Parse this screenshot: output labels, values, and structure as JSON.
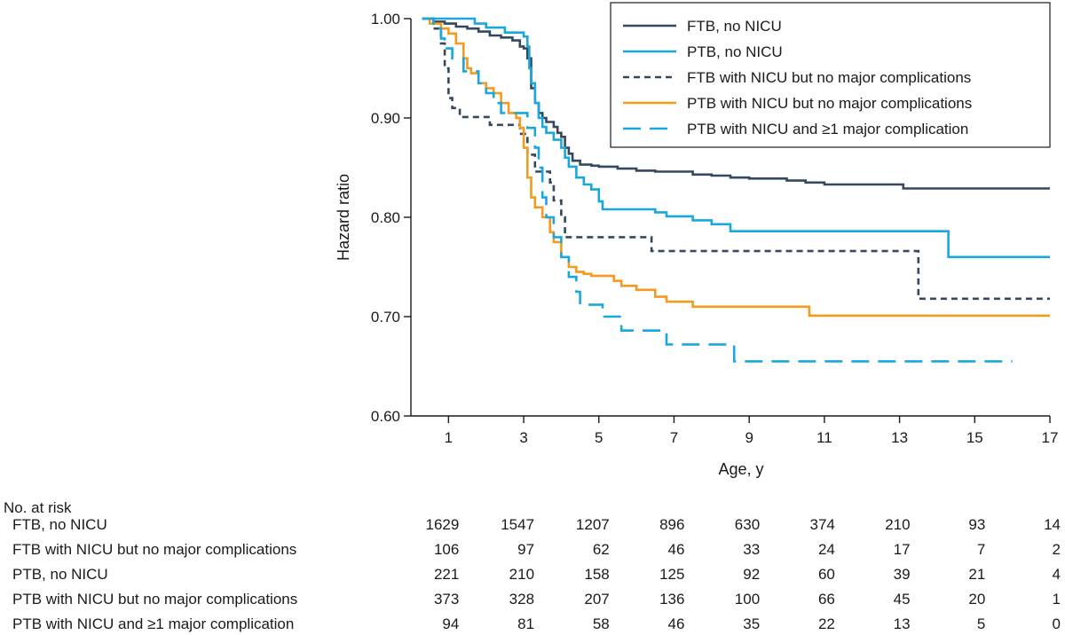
{
  "chart_data": {
    "type": "line",
    "step": true,
    "title": "",
    "xlabel": "Age, y",
    "ylabel": "Hazard ratio",
    "xlim": [
      0,
      17
    ],
    "ylim": [
      0.6,
      1.0
    ],
    "x_ticks": [
      1,
      3,
      5,
      7,
      9,
      11,
      13,
      15,
      17
    ],
    "y_ticks": [
      0.6,
      0.7,
      0.8,
      0.9,
      1.0
    ],
    "y_tick_labels": [
      "0.60",
      "0.70",
      "0.80",
      "0.90",
      "1.00"
    ],
    "grid": false,
    "legend_position": "top-right",
    "series": [
      {
        "name": "FTB, no NICU",
        "color": "#34495e",
        "dash": "solid",
        "points": [
          [
            0.3,
            1.0
          ],
          [
            0.6,
            0.997
          ],
          [
            0.9,
            0.995
          ],
          [
            1.2,
            0.992
          ],
          [
            1.5,
            0.99
          ],
          [
            1.8,
            0.987
          ],
          [
            2.1,
            0.983
          ],
          [
            2.4,
            0.981
          ],
          [
            2.7,
            0.978
          ],
          [
            2.9,
            0.972
          ],
          [
            3.0,
            0.97
          ],
          [
            3.1,
            0.96
          ],
          [
            3.2,
            0.93
          ],
          [
            3.3,
            0.915
          ],
          [
            3.4,
            0.905
          ],
          [
            3.5,
            0.9
          ],
          [
            3.6,
            0.896
          ],
          [
            3.8,
            0.891
          ],
          [
            3.9,
            0.885
          ],
          [
            4.0,
            0.881
          ],
          [
            4.1,
            0.87
          ],
          [
            4.2,
            0.864
          ],
          [
            4.3,
            0.857
          ],
          [
            4.5,
            0.853
          ],
          [
            4.8,
            0.852
          ],
          [
            5.0,
            0.851
          ],
          [
            5.5,
            0.849
          ],
          [
            6.0,
            0.847
          ],
          [
            6.5,
            0.846
          ],
          [
            7.0,
            0.846
          ],
          [
            7.5,
            0.843
          ],
          [
            8.0,
            0.842
          ],
          [
            8.5,
            0.84
          ],
          [
            9.0,
            0.839
          ],
          [
            10.0,
            0.837
          ],
          [
            10.5,
            0.835
          ],
          [
            11.0,
            0.833
          ],
          [
            12.0,
            0.833
          ],
          [
            13.0,
            0.833
          ],
          [
            13.1,
            0.829
          ],
          [
            14.0,
            0.829
          ],
          [
            15.0,
            0.829
          ],
          [
            16.0,
            0.829
          ],
          [
            17.0,
            0.829
          ]
        ]
      },
      {
        "name": "PTB, no NICU",
        "color": "#1aa7e0",
        "dash": "solid",
        "points": [
          [
            0.3,
            1.0
          ],
          [
            1.0,
            1.0
          ],
          [
            1.5,
            1.0
          ],
          [
            1.7,
            0.995
          ],
          [
            2.0,
            0.991
          ],
          [
            2.5,
            0.986
          ],
          [
            3.0,
            0.982
          ],
          [
            3.1,
            0.972
          ],
          [
            3.15,
            0.95
          ],
          [
            3.2,
            0.935
          ],
          [
            3.3,
            0.915
          ],
          [
            3.4,
            0.9
          ],
          [
            3.5,
            0.891
          ],
          [
            3.6,
            0.885
          ],
          [
            3.8,
            0.878
          ],
          [
            4.0,
            0.87
          ],
          [
            4.1,
            0.86
          ],
          [
            4.2,
            0.851
          ],
          [
            4.4,
            0.84
          ],
          [
            4.6,
            0.833
          ],
          [
            4.8,
            0.828
          ],
          [
            5.0,
            0.816
          ],
          [
            5.1,
            0.808
          ],
          [
            6.0,
            0.808
          ],
          [
            6.5,
            0.805
          ],
          [
            6.8,
            0.801
          ],
          [
            7.5,
            0.797
          ],
          [
            8.0,
            0.793
          ],
          [
            8.5,
            0.786
          ],
          [
            10.0,
            0.786
          ],
          [
            12.0,
            0.786
          ],
          [
            14.0,
            0.786
          ],
          [
            14.3,
            0.76
          ],
          [
            16.0,
            0.76
          ],
          [
            17.0,
            0.76
          ]
        ]
      },
      {
        "name": "FTB with NICU but no major complications",
        "color": "#34495e",
        "dash": "short",
        "points": [
          [
            0.3,
            1.0
          ],
          [
            0.6,
            0.99
          ],
          [
            0.8,
            0.975
          ],
          [
            0.9,
            0.95
          ],
          [
            1.0,
            0.92
          ],
          [
            1.1,
            0.91
          ],
          [
            1.3,
            0.901
          ],
          [
            2.0,
            0.901
          ],
          [
            2.1,
            0.893
          ],
          [
            2.8,
            0.893
          ],
          [
            2.9,
            0.884
          ],
          [
            3.1,
            0.863
          ],
          [
            3.3,
            0.846
          ],
          [
            3.6,
            0.846
          ],
          [
            3.7,
            0.835
          ],
          [
            3.8,
            0.817
          ],
          [
            4.0,
            0.8
          ],
          [
            4.1,
            0.78
          ],
          [
            5.0,
            0.78
          ],
          [
            6.0,
            0.78
          ],
          [
            6.4,
            0.766
          ],
          [
            8.0,
            0.766
          ],
          [
            10.0,
            0.766
          ],
          [
            12.0,
            0.766
          ],
          [
            13.4,
            0.766
          ],
          [
            13.5,
            0.718
          ],
          [
            15.0,
            0.718
          ],
          [
            17.0,
            0.718
          ]
        ]
      },
      {
        "name": "PTB with NICU but no major complications",
        "color": "#f39a1f",
        "dash": "solid",
        "points": [
          [
            0.3,
            1.0
          ],
          [
            0.5,
            0.995
          ],
          [
            0.8,
            0.99
          ],
          [
            1.0,
            0.985
          ],
          [
            1.2,
            0.975
          ],
          [
            1.4,
            0.96
          ],
          [
            1.5,
            0.95
          ],
          [
            1.6,
            0.945
          ],
          [
            1.8,
            0.935
          ],
          [
            2.0,
            0.93
          ],
          [
            2.2,
            0.925
          ],
          [
            2.4,
            0.915
          ],
          [
            2.6,
            0.905
          ],
          [
            2.8,
            0.9
          ],
          [
            2.9,
            0.89
          ],
          [
            3.0,
            0.87
          ],
          [
            3.1,
            0.84
          ],
          [
            3.2,
            0.82
          ],
          [
            3.3,
            0.81
          ],
          [
            3.5,
            0.8
          ],
          [
            3.7,
            0.785
          ],
          [
            3.8,
            0.775
          ],
          [
            4.0,
            0.76
          ],
          [
            4.2,
            0.75
          ],
          [
            4.4,
            0.745
          ],
          [
            4.6,
            0.743
          ],
          [
            4.8,
            0.741
          ],
          [
            5.4,
            0.736
          ],
          [
            5.6,
            0.731
          ],
          [
            6.0,
            0.727
          ],
          [
            6.5,
            0.72
          ],
          [
            6.8,
            0.715
          ],
          [
            7.0,
            0.715
          ],
          [
            7.5,
            0.71
          ],
          [
            8.5,
            0.71
          ],
          [
            10.5,
            0.71
          ],
          [
            10.6,
            0.701
          ],
          [
            12.0,
            0.701
          ],
          [
            14.0,
            0.701
          ],
          [
            17.0,
            0.701
          ]
        ]
      },
      {
        "name": "PTB with NICU and ≥1 major complication",
        "color": "#1aa7e0",
        "dash": "long",
        "points": [
          [
            0.3,
            1.0
          ],
          [
            0.6,
            0.99
          ],
          [
            0.8,
            0.98
          ],
          [
            0.9,
            0.97
          ],
          [
            1.1,
            0.96
          ],
          [
            1.4,
            0.947
          ],
          [
            1.8,
            0.935
          ],
          [
            2.0,
            0.925
          ],
          [
            2.2,
            0.915
          ],
          [
            2.4,
            0.905
          ],
          [
            3.0,
            0.905
          ],
          [
            3.1,
            0.89
          ],
          [
            3.3,
            0.87
          ],
          [
            3.4,
            0.85
          ],
          [
            3.5,
            0.82
          ],
          [
            3.6,
            0.8
          ],
          [
            3.8,
            0.78
          ],
          [
            4.0,
            0.76
          ],
          [
            4.2,
            0.74
          ],
          [
            4.4,
            0.725
          ],
          [
            4.5,
            0.712
          ],
          [
            5.0,
            0.712
          ],
          [
            5.1,
            0.7
          ],
          [
            5.6,
            0.686
          ],
          [
            6.5,
            0.686
          ],
          [
            6.8,
            0.672
          ],
          [
            7.0,
            0.672
          ],
          [
            8.5,
            0.672
          ],
          [
            8.6,
            0.655
          ],
          [
            10.0,
            0.655
          ],
          [
            12.0,
            0.655
          ],
          [
            14.0,
            0.655
          ],
          [
            16.0,
            0.655
          ]
        ]
      }
    ],
    "risk_table": {
      "heading": "No. at risk",
      "columns_x": [
        1,
        3,
        5,
        7,
        9,
        11,
        13,
        15,
        17
      ],
      "rows": [
        {
          "label": "FTB, no NICU",
          "values": [
            "1629",
            "1547",
            "1207",
            "896",
            "630",
            "374",
            "210",
            "93",
            "14"
          ]
        },
        {
          "label": "FTB with NICU but no major complications",
          "values": [
            "106",
            "97",
            "62",
            "46",
            "33",
            "24",
            "17",
            "7",
            "2"
          ]
        },
        {
          "label": "PTB, no NICU",
          "values": [
            "221",
            "210",
            "158",
            "125",
            "92",
            "60",
            "39",
            "21",
            "4"
          ]
        },
        {
          "label": "PTB with NICU but no major complications",
          "values": [
            "373",
            "328",
            "207",
            "136",
            "100",
            "66",
            "45",
            "20",
            "1"
          ]
        },
        {
          "label": "PTB with NICU and ≥1 major complication",
          "values": [
            "94",
            "81",
            "58",
            "46",
            "35",
            "22",
            "13",
            "5",
            "0"
          ]
        }
      ]
    }
  }
}
